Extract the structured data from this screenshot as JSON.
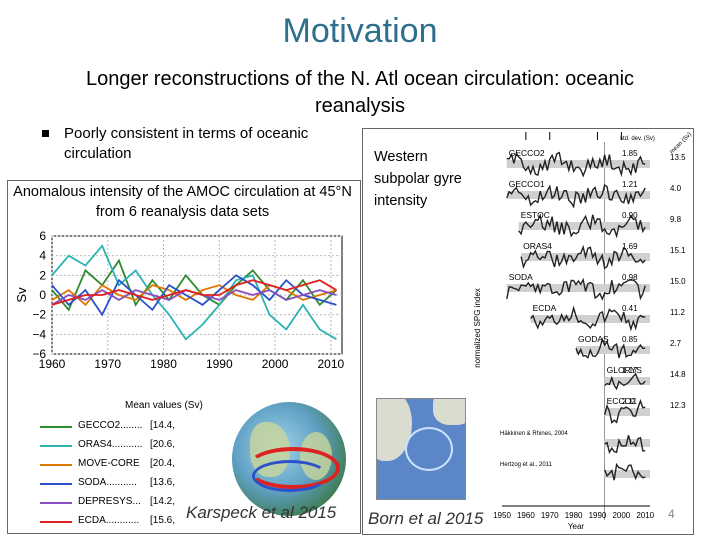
{
  "slide": {
    "title": "Motivation",
    "subtitle": "Longer reconstructions of the N. Atl ocean circulation: oceanic reanalysis",
    "bullet": "Poorly consistent in terms of oceanic circulation",
    "page_number": "4"
  },
  "left_panel": {
    "caption": "Anomalous intensity of the AMOC circulation at 45°N from 6 reanalysis data sets",
    "legend_title": "Mean values (Sv)",
    "legend": [
      {
        "name": "GECCO2........",
        "value": "[14.4,",
        "color": "#2e8b2e"
      },
      {
        "name": "ORAS4...........",
        "value": "[20.6,",
        "color": "#2bb3b3"
      },
      {
        "name": "MOVE-CORE",
        "value": "[20.4,",
        "color": "#e07800"
      },
      {
        "name": "SODA...........",
        "value": "[13.6,",
        "color": "#2b52c8"
      },
      {
        "name": "DEPRESYS...",
        "value": "[14.2,",
        "color": "#8a4fc0"
      },
      {
        "name": "ECDA............",
        "value": "[15.6,",
        "color": "#e02020"
      }
    ],
    "credit": "Karspeck et al 2015"
  },
  "right_panel": {
    "caption": "Western subpolar gyre intensity",
    "credit": "Born et al 2015"
  },
  "chart_data": [
    {
      "type": "line",
      "title": "",
      "xlabel": "",
      "ylabel": "Sv",
      "xlim": [
        1960,
        2012
      ],
      "ylim": [
        -6,
        6
      ],
      "xticks": [
        1960,
        1970,
        1980,
        1990,
        2000,
        2010
      ],
      "yticks": [
        -6,
        -4,
        -2,
        0,
        2,
        4,
        6
      ],
      "grid": true,
      "series": [
        {
          "name": "GECCO2",
          "color": "#2e8b2e",
          "x": [
            1960,
            1963,
            1966,
            1969,
            1972,
            1975,
            1978,
            1981,
            1984,
            1987,
            1990,
            1993,
            1996,
            1999,
            2002,
            2005,
            2008,
            2011
          ],
          "values": [
            0.5,
            -1.5,
            2.5,
            1.0,
            3.5,
            -1.0,
            1.5,
            -0.5,
            2.0,
            0.0,
            -1.0,
            1.0,
            2.5,
            0.5,
            -0.5,
            1.5,
            -1.0,
            0.5
          ]
        },
        {
          "name": "ORAS4",
          "color": "#2bb3b3",
          "x": [
            1960,
            1963,
            1966,
            1969,
            1972,
            1975,
            1978,
            1981,
            1984,
            1987,
            1990,
            1993,
            1996,
            1999,
            2002,
            2005,
            2008,
            2011
          ],
          "values": [
            2.0,
            4.0,
            3.0,
            5.0,
            1.0,
            2.5,
            0.0,
            -2.0,
            -4.5,
            -3.0,
            -1.0,
            1.5,
            2.0,
            -2.0,
            -3.5,
            -1.0,
            -3.5,
            -4.5
          ]
        },
        {
          "name": "MOVE-CORE",
          "color": "#e07800",
          "x": [
            1960,
            1963,
            1966,
            1969,
            1972,
            1975,
            1978,
            1981,
            1984,
            1987,
            1990,
            1993,
            1996,
            1999,
            2002,
            2005,
            2008,
            2011
          ],
          "values": [
            -0.5,
            0.5,
            -1.0,
            1.0,
            0.0,
            -0.5,
            1.0,
            0.5,
            -0.5,
            0.5,
            1.0,
            0.0,
            -0.5,
            1.0,
            0.5,
            -0.5,
            0.0,
            0.5
          ]
        },
        {
          "name": "SODA",
          "color": "#2b52c8",
          "x": [
            1960,
            1963,
            1966,
            1969,
            1972,
            1975,
            1978,
            1981,
            1984,
            1987,
            1990,
            1993,
            1996,
            1999,
            2002,
            2005,
            2008,
            2011
          ],
          "values": [
            1.0,
            -1.0,
            0.5,
            -2.0,
            1.5,
            0.0,
            -1.5,
            1.0,
            0.0,
            -1.0,
            0.5,
            2.0,
            1.0,
            -0.5,
            1.5,
            0.0,
            -0.5,
            -1.0
          ]
        },
        {
          "name": "DEPRESYS",
          "color": "#8a4fc0",
          "x": [
            1960,
            1963,
            1966,
            1969,
            1972,
            1975,
            1978,
            1981,
            1984,
            1987,
            1990,
            1993,
            1996,
            1999,
            2002,
            2005,
            2008,
            2011
          ],
          "values": [
            -1.0,
            0.0,
            -0.5,
            0.5,
            -0.5,
            0.5,
            0.0,
            -0.5,
            0.5,
            0.0,
            -0.5,
            0.5,
            0.0,
            0.5,
            -0.5,
            0.0,
            0.5,
            0.0
          ]
        },
        {
          "name": "ECDA",
          "color": "#e02020",
          "x": [
            1960,
            1963,
            1966,
            1969,
            1972,
            1975,
            1978,
            1981,
            1984,
            1987,
            1990,
            1993,
            1996,
            1999,
            2002,
            2005,
            2008,
            2011
          ],
          "values": [
            -1.0,
            -0.5,
            0.0,
            0.0,
            0.5,
            0.0,
            -0.5,
            0.0,
            0.5,
            0.0,
            0.0,
            1.0,
            1.5,
            1.0,
            0.5,
            1.0,
            1.5,
            0.5
          ]
        }
      ]
    },
    {
      "type": "line",
      "title": "",
      "xlabel": "Year",
      "ylabel": "normalized SPG index",
      "xlim": [
        1950,
        2012
      ],
      "xticks": [
        1950,
        1960,
        1970,
        1980,
        1990,
        2000,
        2010
      ],
      "header": "std. dev. (Sv)",
      "header_right": "mean (Sv)",
      "series": [
        {
          "name": "GECCO2",
          "std": "1.85",
          "mean": "13.5",
          "start": 1952
        },
        {
          "name": "GECCO1",
          "std": "1.21",
          "mean": "4.0",
          "start": 1952
        },
        {
          "name": "ESTOC",
          "std": "0.90",
          "mean": "9.8",
          "start": 1957
        },
        {
          "name": "ORAS4",
          "std": "1.69",
          "mean": "15.1",
          "start": 1958
        },
        {
          "name": "SODA",
          "std": "0.98",
          "mean": "15.0",
          "start": 1952
        },
        {
          "name": "ECDA",
          "std": "0.41",
          "mean": "11.2",
          "start": 1962
        },
        {
          "name": "GODAS",
          "std": "0.85",
          "mean": "2.7",
          "start": 1981
        },
        {
          "name": "GLORYS",
          "std": "1.17",
          "mean": "14.8",
          "start": 1993
        },
        {
          "name": "ECCO2",
          "std": "2.11",
          "mean": "12.3",
          "start": 1993
        },
        {
          "name": "Häkkinen & Rhines, 2004",
          "std": "",
          "mean": "",
          "start": 1993
        },
        {
          "name": "Hertzog et al., 2011",
          "std": "",
          "mean": "",
          "start": 1993
        }
      ]
    }
  ]
}
